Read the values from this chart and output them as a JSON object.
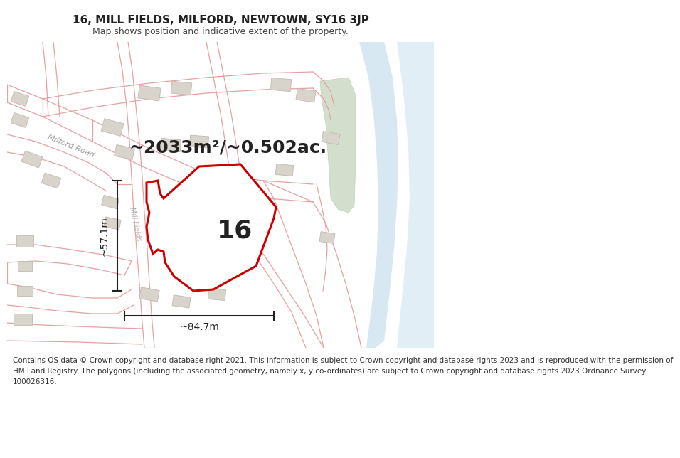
{
  "title_line1": "16, MILL FIELDS, MILFORD, NEWTOWN, SY16 3JP",
  "title_line2": "Map shows position and indicative extent of the property.",
  "area_text": "~2033m²/~0.502ac.",
  "number_label": "16",
  "dim_horizontal": "~84.7m",
  "dim_vertical": "~57.1m",
  "road_label1": "Milford Road",
  "road_label2": "Mill Fields",
  "footer_lines": [
    "Contains OS data © Crown copyright and database right 2021. This information is subject to Crown copyright and database rights 2023 and is reproduced with the permission of",
    "HM Land Registry. The polygons (including the associated geometry, namely x, y co-ordinates) are subject to Crown copyright and database rights 2023 Ordnance Survey",
    "100026316."
  ],
  "bg_color": "#ffffff",
  "road_line_color": "#e8a0a0",
  "road_fill_color": "#f8e8e8",
  "property_fill": "#ffffff",
  "property_edge": "#cc0000",
  "water_fill": "#d0e4f0",
  "water_edge": "#c0d4e4",
  "green_fill": "#c8d8c0",
  "green_edge": "#b8c8b0",
  "building_fill": "#d8d4cc",
  "building_edge": "#c0bab0",
  "dim_color": "#222222",
  "text_dark": "#222222",
  "text_gray": "#888888",
  "footer_color": "#333333",
  "title_fontsize": 11,
  "subtitle_fontsize": 9,
  "area_fontsize": 18,
  "number_fontsize": 26,
  "dim_fontsize": 10,
  "road_label_fontsize": 8,
  "footer_fontsize": 7.5
}
